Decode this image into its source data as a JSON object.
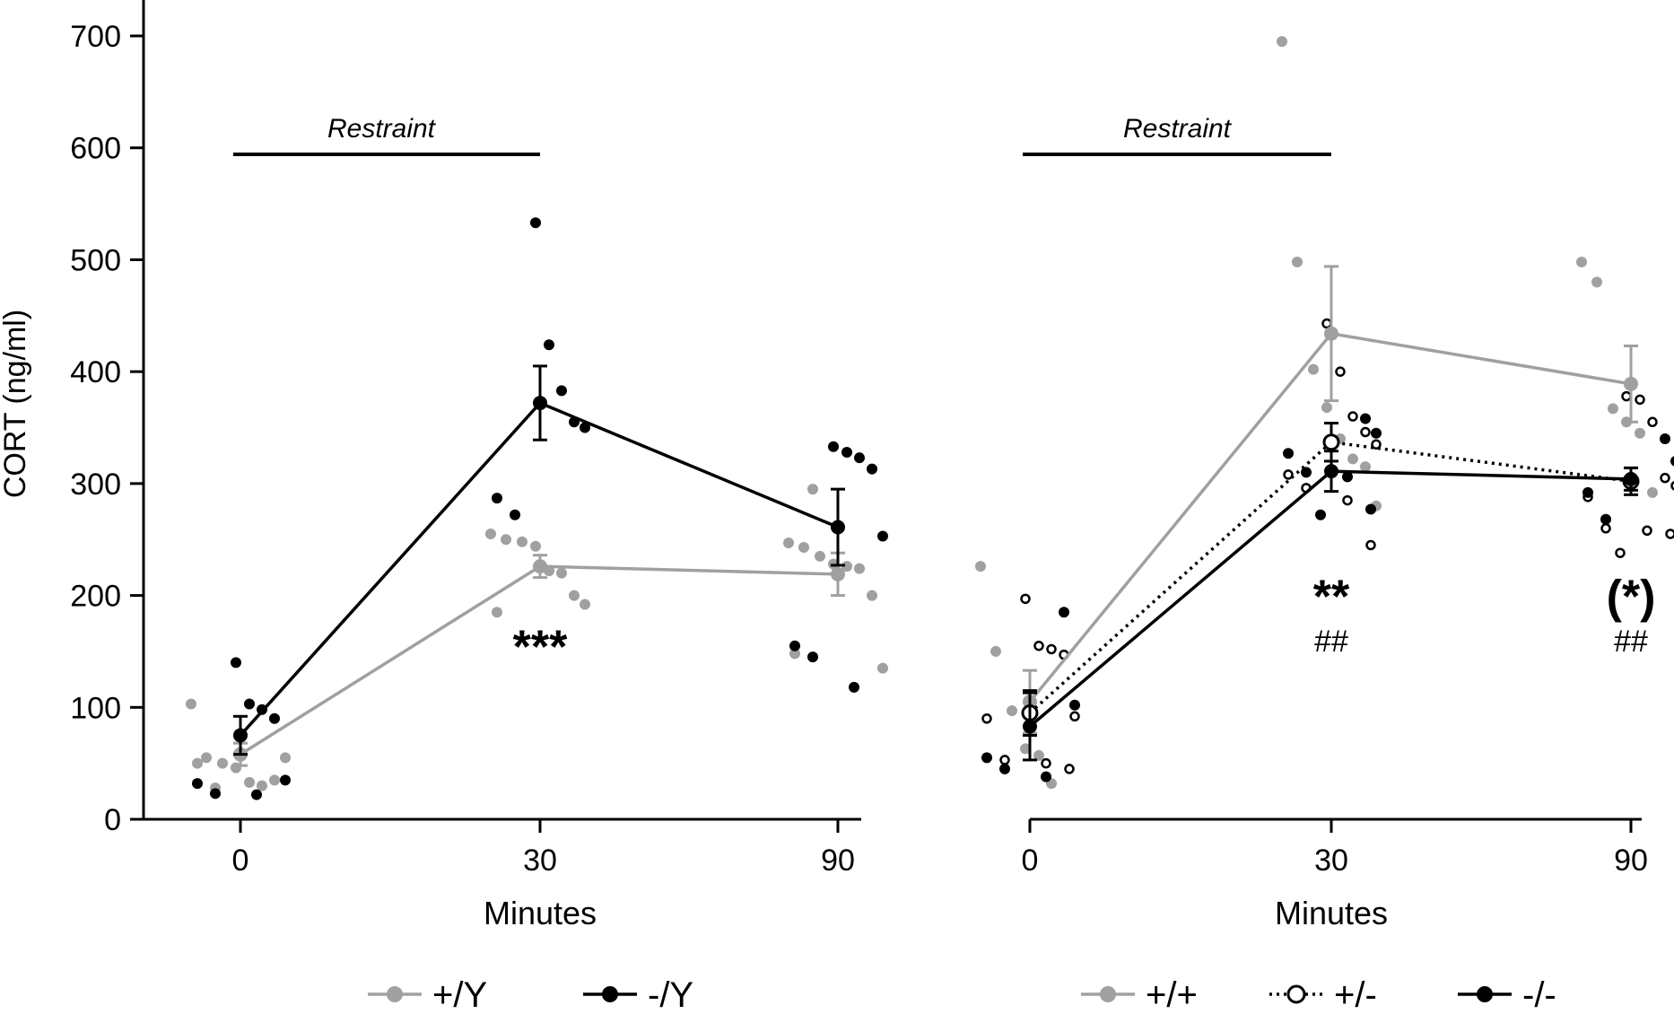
{
  "colors": {
    "gray": "#a0a0a0",
    "black": "#000000",
    "axis": "#000000"
  },
  "y_axis": {
    "label": "CORT (ng/ml)",
    "ticks": [
      "0",
      "100",
      "200",
      "300",
      "400",
      "500",
      "600",
      "700"
    ]
  },
  "panels": [
    {
      "id": "left",
      "xlabel": "Minutes",
      "xticks": [
        "0",
        "30",
        "90"
      ],
      "restraint": {
        "label": "Restraint",
        "from": 0,
        "to": 30
      },
      "annotations": [
        {
          "tp": 30,
          "text": "***",
          "y": 140
        }
      ],
      "legend": [
        {
          "label": "+/Y",
          "color": "#a0a0a0",
          "marker": "filled",
          "line": "solid"
        },
        {
          "label": "-/Y",
          "color": "#000000",
          "marker": "filled",
          "line": "solid"
        }
      ]
    },
    {
      "id": "right",
      "xlabel": "Minutes",
      "xticks": [
        "0",
        "30",
        "90"
      ],
      "restraint": {
        "label": "Restraint",
        "from": 0,
        "to": 30
      },
      "annotations": [
        {
          "tp": 30,
          "text": "**",
          "y": 185
        },
        {
          "tp": 30,
          "text": "##",
          "y": 150,
          "small": true
        },
        {
          "tp": 90,
          "text": "(*)",
          "y": 185
        },
        {
          "tp": 90,
          "text": "##",
          "y": 150,
          "small": true
        }
      ],
      "legend": [
        {
          "label": "+/+",
          "color": "#a0a0a0",
          "marker": "filled",
          "line": "solid"
        },
        {
          "label": "+/-",
          "color": "#000000",
          "marker": "open",
          "line": "dotted"
        },
        {
          "label": "-/-",
          "color": "#000000",
          "marker": "filled",
          "line": "solid"
        }
      ]
    }
  ],
  "chart_data": [
    {
      "type": "scatter",
      "xlabel": "Minutes",
      "ylabel": "CORT (ng/ml)",
      "x": [
        0,
        30,
        90
      ],
      "ylim": [
        0,
        700
      ],
      "series": [
        {
          "name": "+/Y",
          "color": "#a0a0a0",
          "marker": "filled",
          "line": "solid",
          "means": [
            58,
            226,
            219
          ],
          "sem": [
            10,
            10,
            19
          ],
          "points": [
            [
              103,
              55,
              50,
              46,
              33,
              30,
              35,
              55,
              50,
              28
            ],
            [
              255,
              250,
              248,
              244,
              222,
              220,
              200,
              192,
              185
            ],
            [
              247,
              243,
              235,
              228,
              226,
              224,
              200,
              135,
              148,
              295
            ]
          ]
        },
        {
          "name": "-/Y",
          "color": "#000000",
          "marker": "filled",
          "line": "solid",
          "means": [
            75,
            372,
            261
          ],
          "sem": [
            17,
            33,
            34
          ],
          "points": [
            [
              140,
              103,
              98,
              90,
              35,
              32,
              23,
              22
            ],
            [
              533,
              424,
              383,
              355,
              350,
              287,
              272
            ],
            [
              333,
              328,
              323,
              313,
              253,
              155,
              145,
              118
            ]
          ]
        }
      ]
    },
    {
      "type": "scatter",
      "xlabel": "Minutes",
      "ylabel": "CORT (ng/ml)",
      "x": [
        0,
        30,
        90
      ],
      "ylim": [
        0,
        700
      ],
      "series": [
        {
          "name": "+/+",
          "color": "#a0a0a0",
          "marker": "filled",
          "line": "solid",
          "means": [
            105,
            434,
            389
          ],
          "sem": [
            28,
            60,
            34
          ],
          "points": [
            [
              226,
              150,
              97,
              63,
              57,
              32
            ],
            [
              695,
              498,
              402,
              368,
              340,
              322,
              315,
              280
            ],
            [
              498,
              480,
              367,
              355,
              345,
              292
            ]
          ]
        },
        {
          "name": "+/-",
          "color": "#000000",
          "marker": "open",
          "line": "dotted",
          "means": [
            95,
            337,
            302
          ],
          "sem": [
            20,
            17,
            12
          ],
          "points": [
            [
              197,
              155,
              152,
              147,
              92,
              90,
              53,
              50,
              45
            ],
            [
              443,
              400,
              360,
              346,
              335,
              308,
              296,
              285,
              245
            ],
            [
              378,
              375,
              355,
              305,
              298,
              288,
              260,
              258,
              255,
              238
            ]
          ]
        },
        {
          "name": "-/-",
          "color": "#000000",
          "marker": "filled",
          "line": "solid",
          "means": [
            83,
            311,
            304
          ],
          "sem": [
            30,
            18,
            10
          ],
          "points": [
            [
              185,
              102,
              55,
              45,
              38
            ],
            [
              358,
              345,
              327,
              310,
              306,
              277,
              272
            ],
            [
              340,
              320,
              292,
              268
            ]
          ]
        }
      ]
    }
  ]
}
